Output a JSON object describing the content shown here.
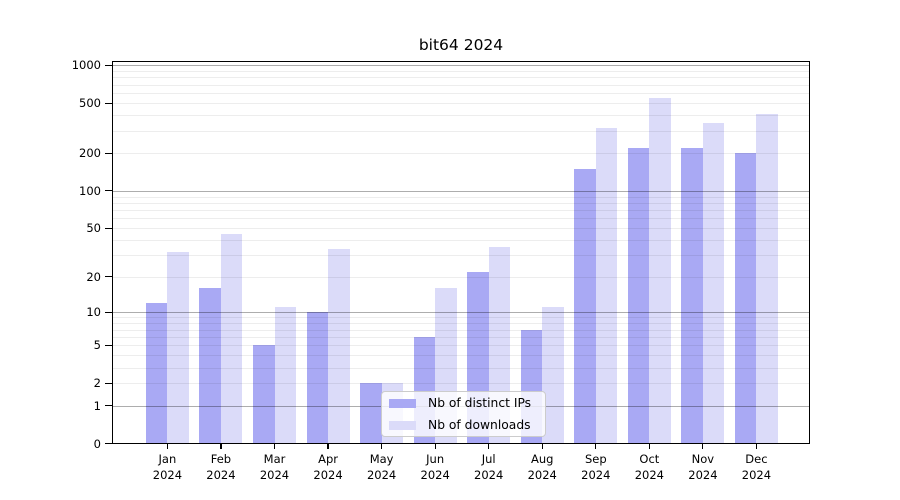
{
  "chart_data": {
    "type": "bar",
    "title": "bit64 2024",
    "categories": [
      "Jan",
      "Feb",
      "Mar",
      "Apr",
      "May",
      "Jun",
      "Jul",
      "Aug",
      "Sep",
      "Oct",
      "Nov",
      "Dec"
    ],
    "x_tick_year": "2024",
    "series": [
      {
        "name": "Nb of distinct IPs",
        "color": "#a9a9f4",
        "values": [
          12,
          16,
          5,
          10,
          2,
          6,
          22,
          7,
          150,
          218,
          220,
          200
        ]
      },
      {
        "name": "Nb of downloads",
        "color": "#dbdbf9",
        "values": [
          32,
          45,
          11,
          34,
          2,
          16,
          35,
          11,
          316,
          550,
          346,
          408
        ]
      }
    ],
    "xlabel": "",
    "ylabel": "",
    "yscale": "log10(value+1)",
    "ylim": [
      0,
      1080
    ],
    "ytick_labels": [
      0,
      1,
      2,
      5,
      10,
      20,
      50,
      100,
      200,
      500,
      1000
    ],
    "major_grid_values": [
      1,
      10,
      100,
      1000
    ],
    "minor_grid_values": [
      2,
      3,
      4,
      5,
      6,
      7,
      8,
      9,
      20,
      30,
      40,
      50,
      60,
      70,
      80,
      90,
      200,
      300,
      400,
      500,
      600,
      700,
      800,
      900
    ],
    "grid": true,
    "legend": {
      "position": "lower center",
      "entries": [
        "Nb of distinct IPs",
        "Nb of downloads"
      ]
    }
  },
  "colors": {
    "background": "#ffffff",
    "spine": "#000000",
    "text": "#000000",
    "major_grid": "rgba(0,0,0,0.32)",
    "minor_grid": "rgba(0,0,0,0.07)",
    "legend_border": "#cccccc",
    "legend_background": "rgba(255,255,255,0.8)"
  }
}
